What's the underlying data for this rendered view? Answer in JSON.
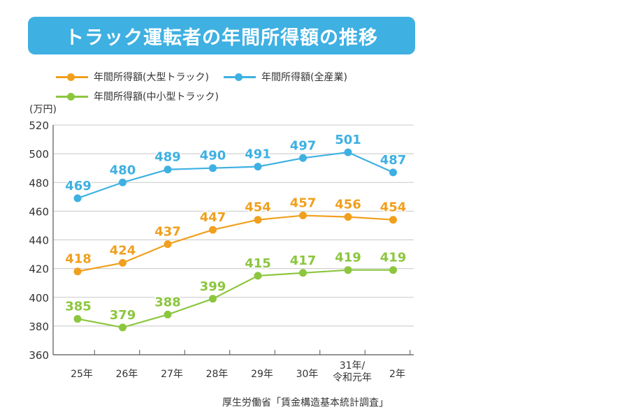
{
  "chart_data": {
    "type": "line",
    "title": "トラック運転者の年間所得額の推移",
    "ylabel": "(万円)",
    "ylim": [
      360,
      520
    ],
    "yticks": [
      360,
      380,
      400,
      420,
      440,
      460,
      480,
      500,
      520
    ],
    "grid": true,
    "legend_placement": "top-left",
    "categories": [
      "25年",
      "26年",
      "27年",
      "28年",
      "29年",
      "30年",
      "31年/\n令和元年",
      "2年"
    ],
    "series": [
      {
        "name": "年間所得額(大型トラック)",
        "color": "#f0a01e",
        "values": [
          418,
          424,
          437,
          447,
          454,
          457,
          456,
          454
        ]
      },
      {
        "name": "年間所得額(全産業)",
        "color": "#3eb0e2",
        "values": [
          469,
          480,
          489,
          490,
          491,
          497,
          501,
          487
        ]
      },
      {
        "name": "年間所得額(中小型トラック)",
        "color": "#8cc63e",
        "values": [
          385,
          379,
          388,
          399,
          415,
          417,
          419,
          419
        ]
      }
    ],
    "source": "厚生労働省「賃金構造基本統計調査」"
  }
}
